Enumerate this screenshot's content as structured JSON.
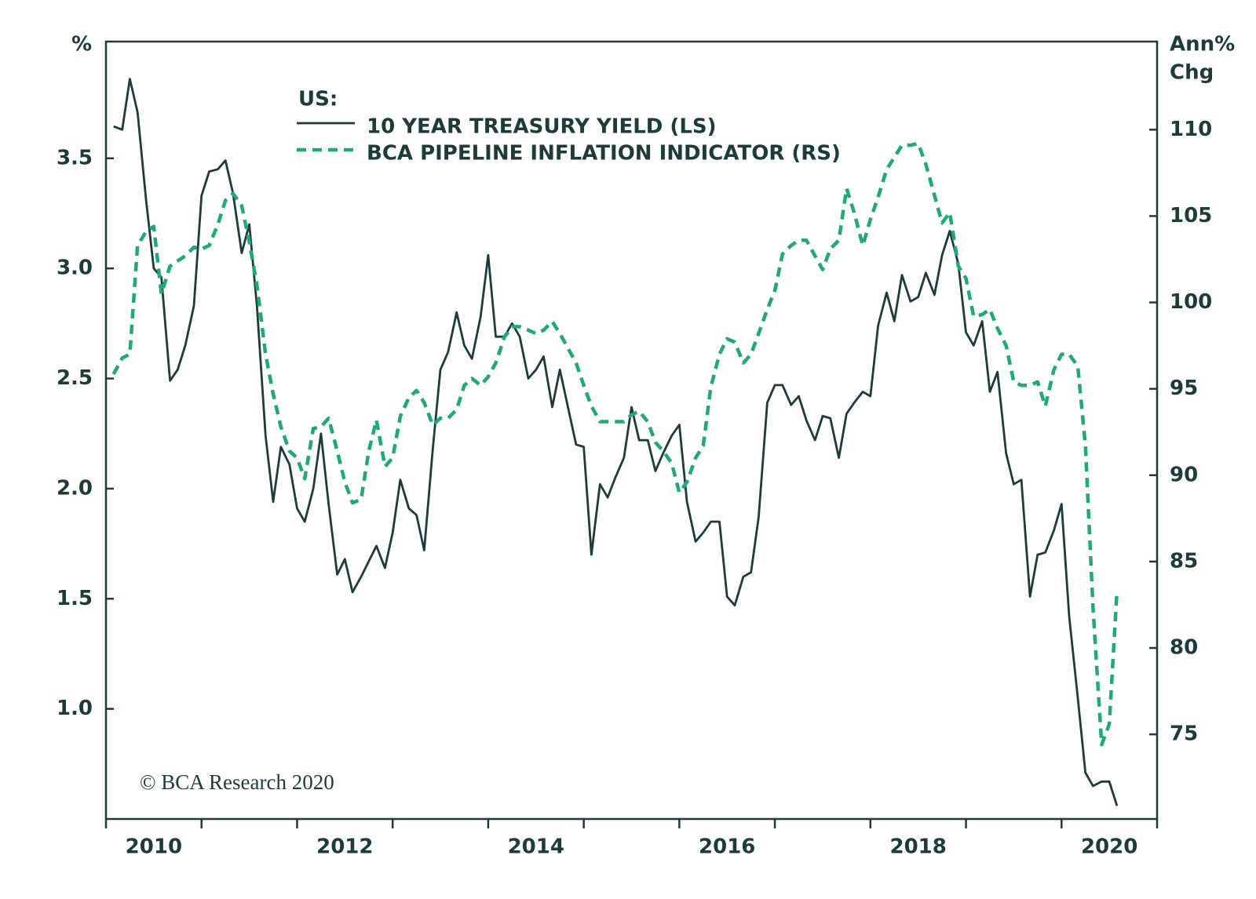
{
  "chart_data": {
    "type": "line",
    "y_label": "%",
    "y2_label": [
      "Ann%",
      "Chg"
    ],
    "legend_title": "US:",
    "source": "© BCA Research 2020",
    "x": [
      2010.08,
      2010.17,
      2010.25,
      2010.33,
      2010.42,
      2010.5,
      2010.58,
      2010.67,
      2010.75,
      2010.83,
      2010.92,
      2011,
      2011.08,
      2011.17,
      2011.25,
      2011.33,
      2011.42,
      2011.5,
      2011.58,
      2011.67,
      2011.75,
      2011.83,
      2011.92,
      2012,
      2012.08,
      2012.17,
      2012.25,
      2012.33,
      2012.42,
      2012.5,
      2012.58,
      2012.67,
      2012.75,
      2012.83,
      2012.92,
      2013,
      2013.08,
      2013.17,
      2013.25,
      2013.33,
      2013.42,
      2013.5,
      2013.58,
      2013.67,
      2013.75,
      2013.83,
      2013.92,
      2014,
      2014.08,
      2014.17,
      2014.25,
      2014.33,
      2014.42,
      2014.5,
      2014.58,
      2014.67,
      2014.75,
      2014.83,
      2014.92,
      2015,
      2015.08,
      2015.17,
      2015.25,
      2015.33,
      2015.42,
      2015.5,
      2015.58,
      2015.67,
      2015.75,
      2015.83,
      2015.92,
      2016,
      2016.08,
      2016.17,
      2016.25,
      2016.33,
      2016.42,
      2016.5,
      2016.58,
      2016.67,
      2016.75,
      2016.83,
      2016.92,
      2017,
      2017.08,
      2017.17,
      2017.25,
      2017.33,
      2017.42,
      2017.5,
      2017.58,
      2017.67,
      2017.75,
      2017.83,
      2017.92,
      2018,
      2018.08,
      2018.17,
      2018.25,
      2018.33,
      2018.42,
      2018.5,
      2018.58,
      2018.67,
      2018.75,
      2018.83,
      2018.92,
      2019,
      2019.08,
      2019.17,
      2019.25,
      2019.33,
      2019.42,
      2019.5,
      2019.58,
      2019.67,
      2019.75,
      2019.83,
      2019.92,
      2020,
      2020.08,
      2020.17,
      2020.25,
      2020.33,
      2020.42,
      2020.5,
      2020.58
    ],
    "series": [
      {
        "name": "10 YEAR TREASURY YIELD (LS)",
        "color": "#1d3b39",
        "line_style": "solid",
        "axis": "y",
        "values": [
          3.645,
          3.63,
          3.86,
          3.71,
          3.31,
          3.0,
          2.96,
          2.49,
          2.54,
          2.65,
          2.83,
          3.33,
          3.44,
          3.45,
          3.49,
          3.34,
          3.07,
          3.2,
          2.83,
          2.24,
          1.94,
          2.19,
          2.11,
          1.91,
          1.85,
          2.0,
          2.25,
          1.93,
          1.61,
          1.68,
          1.53,
          1.6,
          1.67,
          1.74,
          1.64,
          1.8,
          2.04,
          1.91,
          1.88,
          1.72,
          2.18,
          2.54,
          2.62,
          2.8,
          2.65,
          2.59,
          2.78,
          3.06,
          2.69,
          2.69,
          2.75,
          2.69,
          2.5,
          2.54,
          2.6,
          2.37,
          2.54,
          2.38,
          2.2,
          2.19,
          1.7,
          2.02,
          1.96,
          2.05,
          2.14,
          2.37,
          2.22,
          2.22,
          2.08,
          2.16,
          2.24,
          2.29,
          1.94,
          1.76,
          1.8,
          1.85,
          1.85,
          1.51,
          1.47,
          1.6,
          1.62,
          1.87,
          2.39,
          2.47,
          2.47,
          2.38,
          2.42,
          2.31,
          2.22,
          2.33,
          2.32,
          2.14,
          2.34,
          2.39,
          2.44,
          2.42,
          2.74,
          2.89,
          2.76,
          2.97,
          2.85,
          2.87,
          2.98,
          2.88,
          3.06,
          3.17,
          3.02,
          2.71,
          2.65,
          2.76,
          2.44,
          2.53,
          2.16,
          2.02,
          2.04,
          1.51,
          1.7,
          1.71,
          1.81,
          1.93,
          1.42,
          1.05,
          0.71,
          0.65,
          0.67,
          0.67,
          0.56
        ]
      },
      {
        "name": "BCA PIPELINE INFLATION INDICATOR (RS)",
        "color": "#1fa87a",
        "line_style": "dashed",
        "axis": "y2",
        "values": [
          95.85,
          96.78,
          97.0,
          103.3,
          104.1,
          104.4,
          100.5,
          102.1,
          102.4,
          102.7,
          103.2,
          103.1,
          103.3,
          104.5,
          105.9,
          106.3,
          105.6,
          103.5,
          101.0,
          97.0,
          94.7,
          92.8,
          91.4,
          91.0,
          89.8,
          92.7,
          92.8,
          93.3,
          91.4,
          89.6,
          88.4,
          88.6,
          91.4,
          93.2,
          90.5,
          91.0,
          93.4,
          94.5,
          94.9,
          94.2,
          92.9,
          93.3,
          93.3,
          93.8,
          95.2,
          95.6,
          95.2,
          95.7,
          96.5,
          98.0,
          98.6,
          98.6,
          98.4,
          98.2,
          98.4,
          98.9,
          98.2,
          97.4,
          96.5,
          95.2,
          94.0,
          93.1,
          93.1,
          93.1,
          93.1,
          93.5,
          93.7,
          93.1,
          91.9,
          91.4,
          90.7,
          89.0,
          89.6,
          91.0,
          91.7,
          95.1,
          97.0,
          97.9,
          97.7,
          96.5,
          97.0,
          98.2,
          99.6,
          100.7,
          102.8,
          103.3,
          103.6,
          103.6,
          102.7,
          101.9,
          103.1,
          103.6,
          106.6,
          105.2,
          103.3,
          104.8,
          106.1,
          107.7,
          108.4,
          109.1,
          109.1,
          109.2,
          108.0,
          106.2,
          104.6,
          105.2,
          102.1,
          101.4,
          99.2,
          99.3,
          99.6,
          98.5,
          97.5,
          95.4,
          95.2,
          95.2,
          95.4,
          94.0,
          96.1,
          97.0,
          97.0,
          96.3,
          91.7,
          82.3,
          74.4,
          75.6,
          83.3
        ]
      }
    ],
    "xlim": [
      2010,
      2021
    ],
    "xticks": [
      2010,
      2012,
      2014,
      2016,
      2018,
      2020
    ],
    "xminor_ticks": [
      2011,
      2013,
      2015,
      2017,
      2019,
      2021
    ],
    "ylim": [
      0.5,
      4.03
    ],
    "yticks": [
      {
        "value": 1,
        "label": "1.0"
      },
      1.5,
      {
        "value": 2,
        "label": "2.0"
      },
      2.5,
      {
        "value": 3,
        "label": "3.0"
      },
      3.5
    ],
    "y2lim": [
      70.1,
      115.1
    ],
    "y2ticks": [
      75,
      80,
      85,
      90,
      95,
      100,
      105,
      110
    ],
    "grid": false
  }
}
